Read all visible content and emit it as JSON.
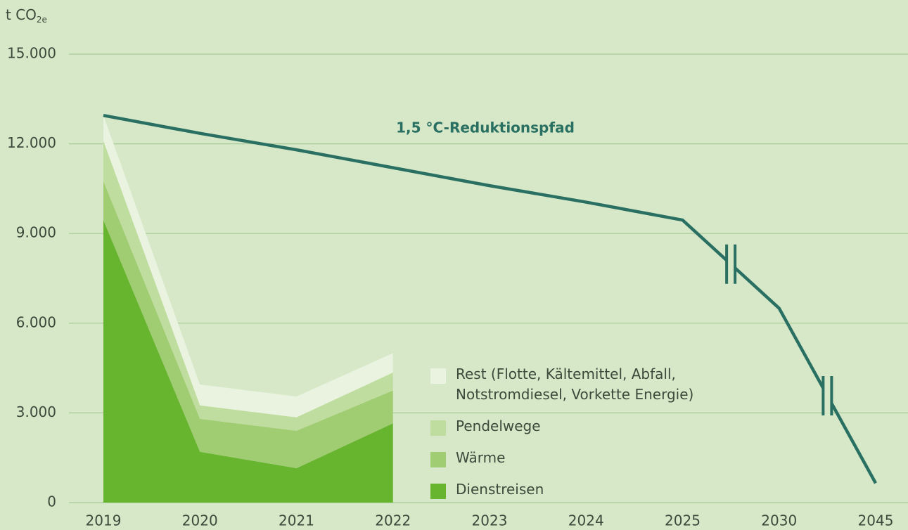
{
  "chart_data": {
    "type": "stacked_area_line",
    "y_label": "t CO",
    "y_label_sub": "2e",
    "annotation": "1,5 °C-Reduktionspfad",
    "categories": [
      "2019",
      "2020",
      "2021",
      "2022",
      "2023",
      "2024",
      "2025",
      "2030",
      "2045"
    ],
    "series": [
      {
        "name": "Dienstreisen",
        "color": "#67b42f",
        "values": [
          9450,
          1700,
          1150,
          2650,
          null,
          null,
          null,
          null,
          null
        ]
      },
      {
        "name": "Wärme",
        "color": "#a0cc72",
        "values": [
          1300,
          1100,
          1250,
          1100,
          null,
          null,
          null,
          null,
          null
        ]
      },
      {
        "name": "Pendelwege",
        "color": "#bfdd9e",
        "values": [
          1350,
          450,
          450,
          600,
          null,
          null,
          null,
          null,
          null
        ]
      },
      {
        "name": "Rest (Flotte, Kältemittel, Abfall, Notstromdiesel, Vorkette Energie)",
        "color": "#e9f3df",
        "values": [
          850,
          700,
          700,
          650,
          null,
          null,
          null,
          null,
          null
        ]
      }
    ],
    "line": {
      "color": "#2a7062",
      "values": [
        12950,
        12350,
        11800,
        11200,
        10600,
        10050,
        9450,
        6500,
        650
      ]
    },
    "ylim": [
      0,
      15000
    ],
    "yticks": [
      0,
      {
        "value": 3000,
        "label": "3.000"
      },
      {
        "value": 6000,
        "label": "6.000"
      },
      {
        "value": 9000,
        "label": "9.000"
      },
      {
        "value": 12000,
        "label": "12.000"
      },
      {
        "value": 15000,
        "label": "15.000"
      }
    ],
    "grid": true
  }
}
